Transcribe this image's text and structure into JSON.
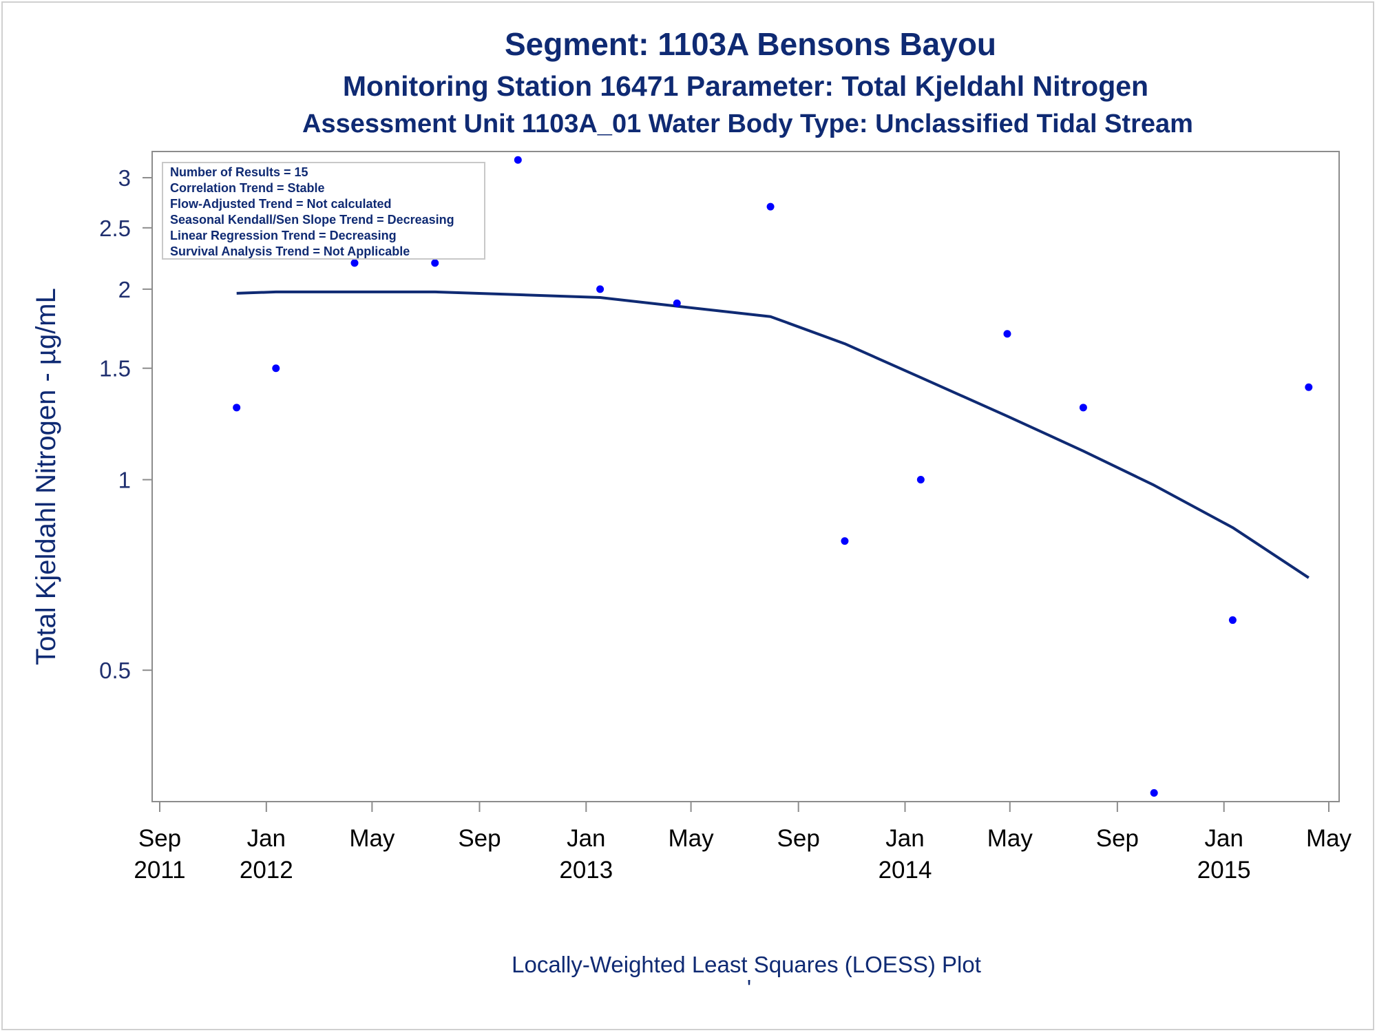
{
  "colors": {
    "title": "#0f2a73",
    "points": "#0000ff",
    "loess": "#0f2a73",
    "axis": "#8c8c8c"
  },
  "chart_data": {
    "type": "scatter",
    "title": "Segment: 1103A  Bensons Bayou",
    "subtitle": "Monitoring Station 16471 Parameter: Total Kjeldahl Nitrogen",
    "subtitle2": "Assessment Unit 1103A_01   Water Body Type: Unclassified Tidal Stream",
    "ylabel": "Total Kjeldahl Nitrogen -  µg/mL",
    "xlabel": "Locally-Weighted Least Squares (LOESS) Plot",
    "footnote": "'",
    "yscale": "log",
    "ylim": [
      0.31,
      3.3
    ],
    "xlim": [
      "2011-09-01",
      "2015-05-01"
    ],
    "y_ticks": [
      {
        "value": 0.5,
        "label": "0.5"
      },
      {
        "value": 1,
        "label": "1"
      },
      {
        "value": 1.5,
        "label": "1.5"
      },
      {
        "value": 2,
        "label": "2"
      },
      {
        "value": 2.5,
        "label": "2.5"
      },
      {
        "value": 3,
        "label": "3"
      }
    ],
    "x_ticks": [
      {
        "date": "2011-09-01",
        "month": "Sep",
        "year": "2011"
      },
      {
        "date": "2012-01-01",
        "month": "Jan",
        "year": "2012"
      },
      {
        "date": "2012-05-01",
        "month": "May",
        "year": ""
      },
      {
        "date": "2012-09-01",
        "month": "Sep",
        "year": ""
      },
      {
        "date": "2013-01-01",
        "month": "Jan",
        "year": "2013"
      },
      {
        "date": "2013-05-01",
        "month": "May",
        "year": ""
      },
      {
        "date": "2013-09-01",
        "month": "Sep",
        "year": ""
      },
      {
        "date": "2014-01-01",
        "month": "Jan",
        "year": "2014"
      },
      {
        "date": "2014-05-01",
        "month": "May",
        "year": ""
      },
      {
        "date": "2014-09-01",
        "month": "Sep",
        "year": ""
      },
      {
        "date": "2015-01-01",
        "month": "Jan",
        "year": "2015"
      },
      {
        "date": "2015-05-01",
        "month": "May",
        "year": ""
      }
    ],
    "points": [
      {
        "date": "2011-11-28",
        "value": 1.3
      },
      {
        "date": "2012-01-12",
        "value": 1.5
      },
      {
        "date": "2012-04-11",
        "value": 2.2
      },
      {
        "date": "2012-07-12",
        "value": 2.2
      },
      {
        "date": "2012-10-15",
        "value": 3.2
      },
      {
        "date": "2013-01-17",
        "value": 2.0
      },
      {
        "date": "2013-04-15",
        "value": 1.9
      },
      {
        "date": "2013-07-31",
        "value": 2.7
      },
      {
        "date": "2013-10-24",
        "value": 0.8
      },
      {
        "date": "2014-01-19",
        "value": 1.0
      },
      {
        "date": "2014-04-28",
        "value": 1.7
      },
      {
        "date": "2014-07-24",
        "value": 1.3
      },
      {
        "date": "2014-10-13",
        "value": 0.32
      },
      {
        "date": "2015-01-11",
        "value": 0.6
      },
      {
        "date": "2015-04-08",
        "value": 1.4
      }
    ],
    "loess": [
      {
        "date": "2011-11-28",
        "value": 1.97
      },
      {
        "date": "2012-01-12",
        "value": 1.98
      },
      {
        "date": "2012-04-11",
        "value": 1.98
      },
      {
        "date": "2012-07-12",
        "value": 1.98
      },
      {
        "date": "2012-10-15",
        "value": 1.96
      },
      {
        "date": "2013-01-17",
        "value": 1.94
      },
      {
        "date": "2013-04-15",
        "value": 1.88
      },
      {
        "date": "2013-07-31",
        "value": 1.81
      },
      {
        "date": "2013-10-24",
        "value": 1.64
      },
      {
        "date": "2014-01-19",
        "value": 1.45
      },
      {
        "date": "2014-04-28",
        "value": 1.26
      },
      {
        "date": "2014-07-24",
        "value": 1.11
      },
      {
        "date": "2014-10-13",
        "value": 0.98
      },
      {
        "date": "2015-01-11",
        "value": 0.84
      },
      {
        "date": "2015-04-08",
        "value": 0.7
      }
    ],
    "legend_placement": "top-left",
    "legend": [
      "Number of Results = 15",
      "Correlation Trend = Stable",
      "Flow-Adjusted Trend = Not calculated",
      "Seasonal Kendall/Sen Slope Trend = Decreasing",
      "Linear Regression Trend = Decreasing",
      "Survival Analysis Trend = Not Applicable"
    ]
  }
}
